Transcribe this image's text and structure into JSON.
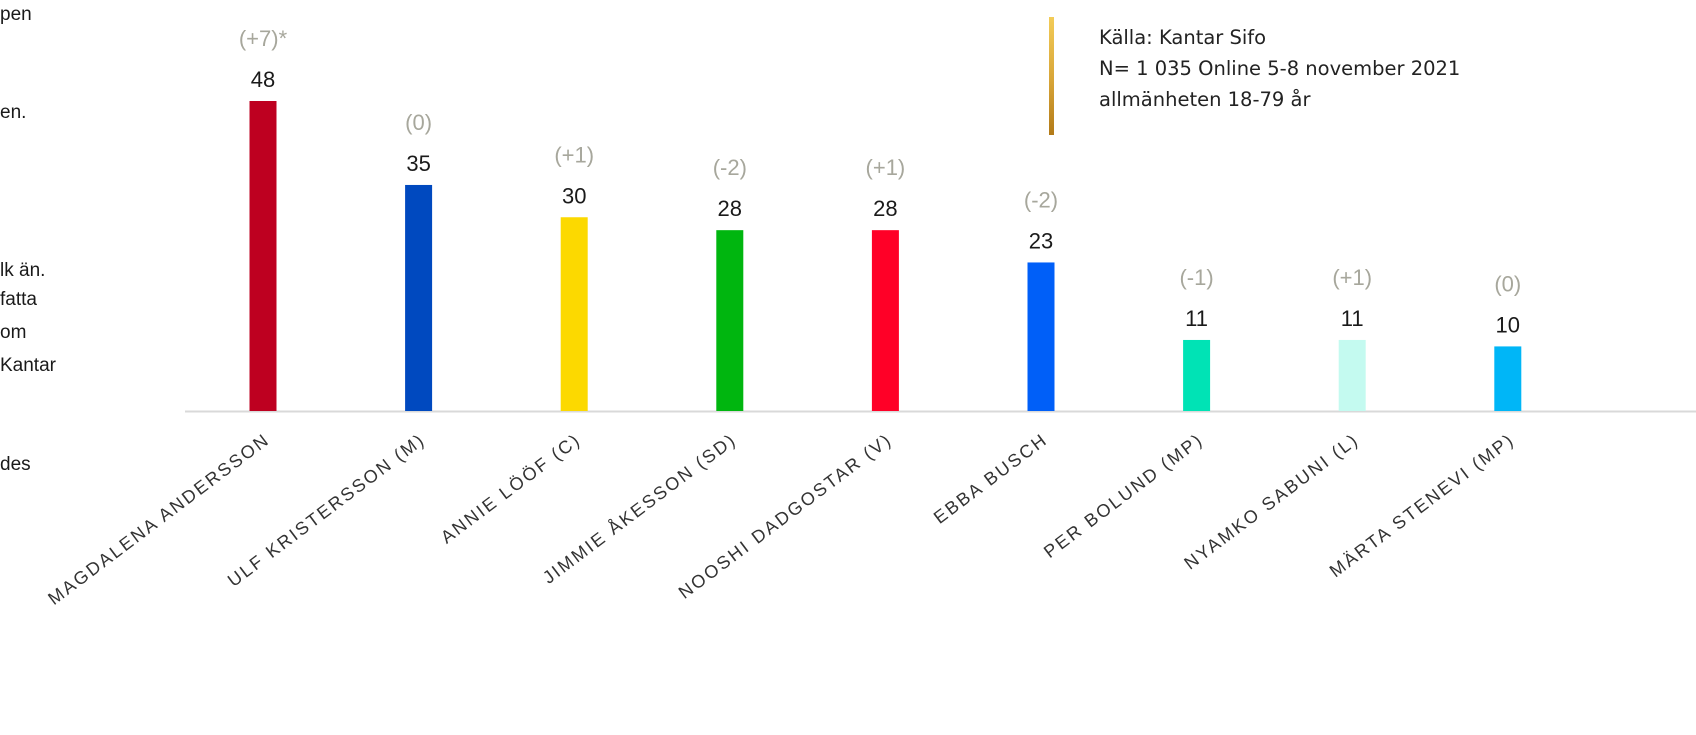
{
  "left_fragments": [
    "pen",
    "en.",
    "lk än.",
    "fatta",
    "om",
    "Kantar",
    "des"
  ],
  "source_note": {
    "line1": "Källa: Kantar Sifo",
    "line2": "N= 1 035  Online 5-8 november 2021",
    "line3": "allmänheten 18-79 år"
  },
  "chart_data": {
    "type": "bar",
    "categories": [
      "MAGDALENA ANDERSSON",
      "ULF KRISTERSSON (M)",
      "ANNIE LÖÖF (C)",
      "JIMMIE ÅKESSON (SD)",
      "NOOSHI DADGOSTAR (V)",
      "EBBA BUSCH",
      "PER BOLUND (MP)",
      "NYAMKO SABUNI (L)",
      "MÄRTA STENEVI (MP)"
    ],
    "values": [
      48,
      35,
      30,
      28,
      28,
      23,
      11,
      11,
      10
    ],
    "changes": [
      "(+7)*",
      "(0)",
      "(+1)",
      "(-2)",
      "(+1)",
      "(-2)",
      "(-1)",
      "(+1)",
      "(0)"
    ],
    "colors": [
      "#be0020",
      "#0049bf",
      "#fcd900",
      "#00b60f",
      "#ff0027",
      "#005ff8",
      "#00e3b5",
      "#c4faf0",
      "#00b6f7"
    ],
    "ylim": [
      0,
      48
    ],
    "grid": false,
    "legend": "none"
  }
}
